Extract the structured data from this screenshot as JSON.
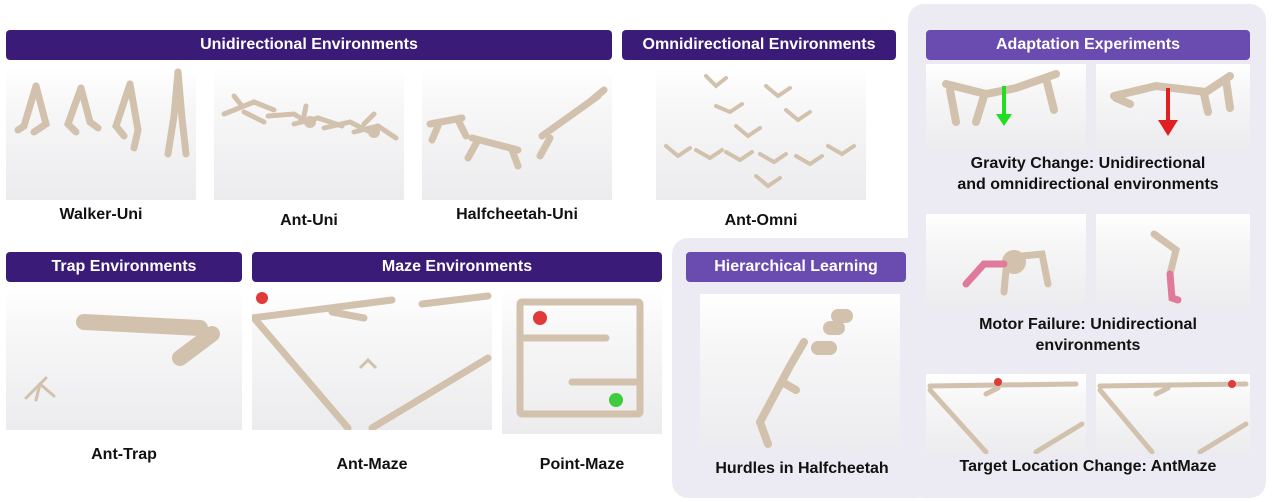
{
  "headers": {
    "unidirectional": "Unidirectional Environments",
    "omnidirectional": "Omnidirectional Environments",
    "adaptation": "Adaptation Experiments",
    "trap": "Trap Environments",
    "maze": "Maze Environments",
    "hierarchical": "Hierarchical Learning"
  },
  "captions": {
    "walker_uni": "Walker-Uni",
    "ant_uni": "Ant-Uni",
    "halfcheetah_uni": "Halfcheetah-Uni",
    "ant_omni": "Ant-Omni",
    "ant_trap": "Ant-Trap",
    "ant_maze": "Ant-Maze",
    "point_maze": "Point-Maze",
    "hurdles": "Hurdles in Halfcheetah",
    "gravity_line1": "Gravity Change: Unidirectional",
    "gravity_line2": "and omnidirectional environments",
    "motor_line1": "Motor Failure: Unidirectional",
    "motor_line2": "environments",
    "target": "Target Location Change: AntMaze"
  },
  "colors": {
    "header_dark": "#3a1b77",
    "header_light": "#6a4cb0",
    "panel_bg": "#ecebf3",
    "limb": "#d2c2ad",
    "target_red": "#e03a3a",
    "goal_green": "#3fcc3f",
    "arrow_green": "#22dd22",
    "arrow_red": "#e02020",
    "motor_pink": "#e07a9a"
  }
}
